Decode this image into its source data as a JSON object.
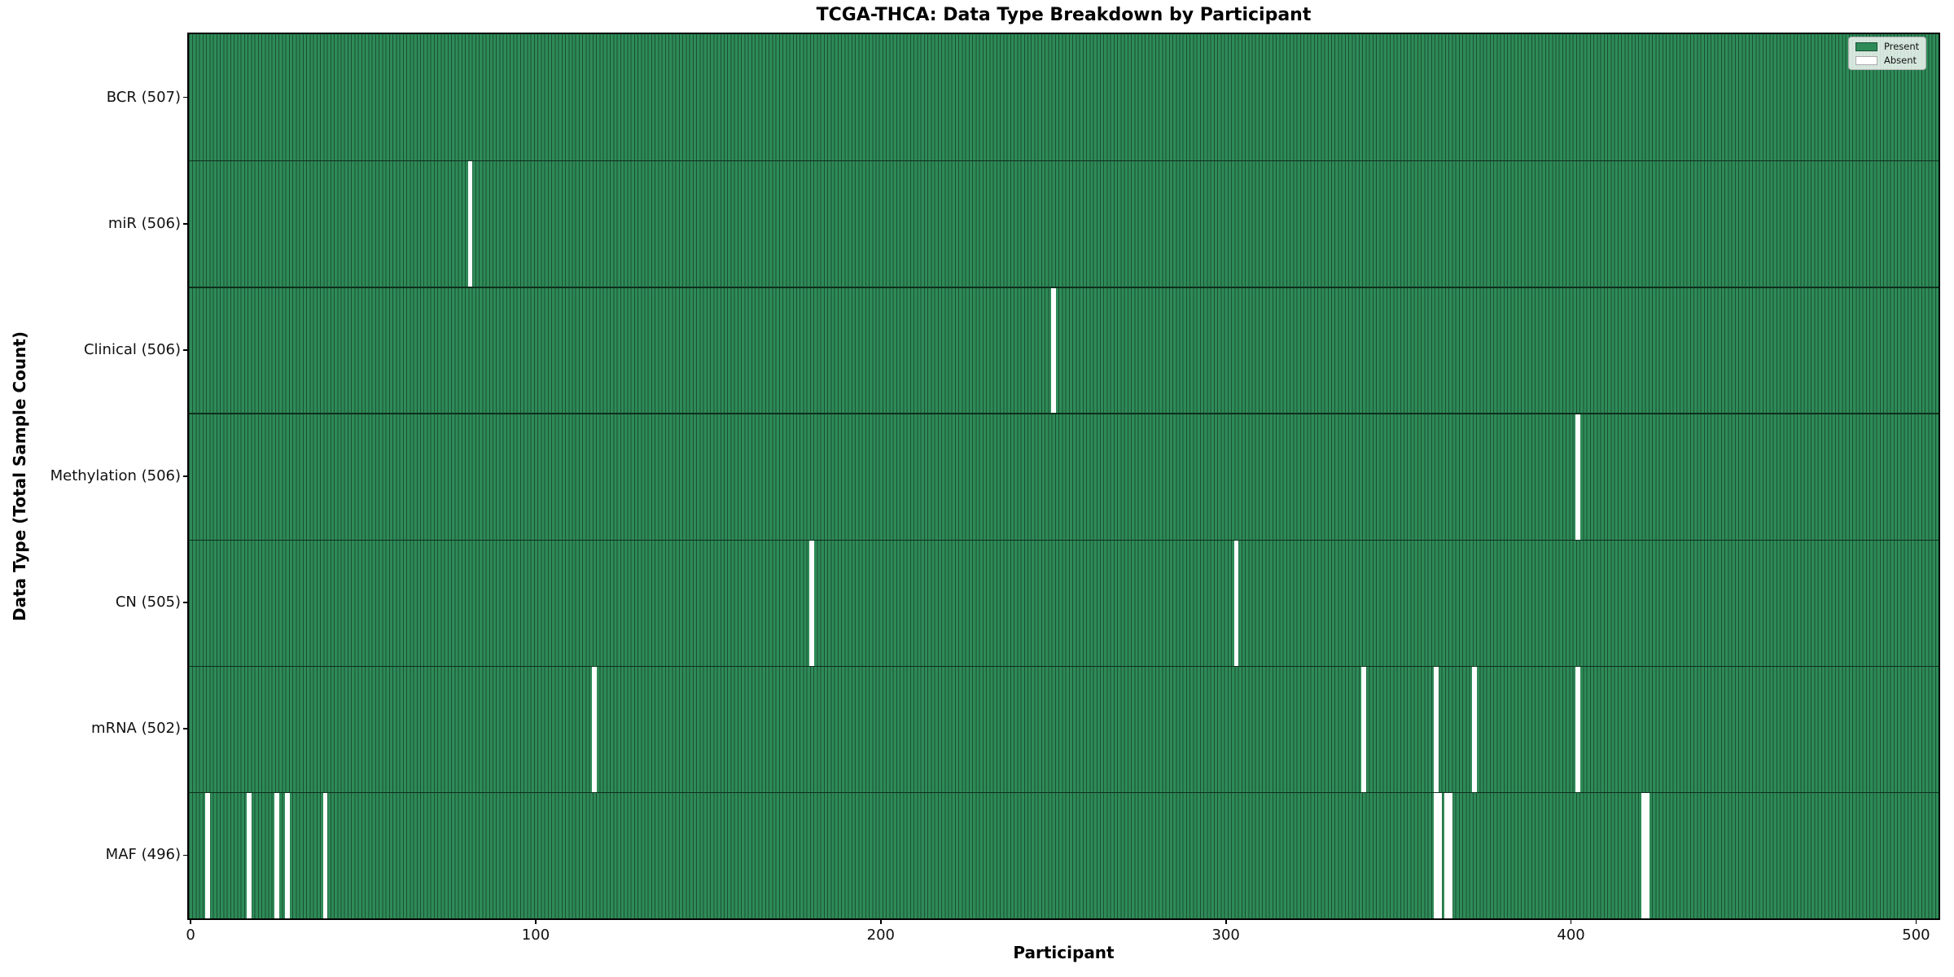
{
  "chart_data": {
    "type": "heatmap",
    "title": "TCGA-THCA: Data Type Breakdown by Participant",
    "xlabel": "Participant",
    "ylabel": "Data Type (Total Sample Count)",
    "n_participants": 507,
    "x_ticks": [
      0,
      100,
      200,
      300,
      400,
      500
    ],
    "grid": false,
    "legend_position": "upper right",
    "legend": [
      {
        "label": "Present",
        "color": "#2e8b57"
      },
      {
        "label": "Absent",
        "color": "#ffffff"
      }
    ],
    "colors": {
      "present_fill": "#2e8b57",
      "bar_edge": "#1b4f35",
      "absent_fill": "#ffffff",
      "row_separator": "#0e2f1d"
    },
    "rows": [
      {
        "label": "BCR (507)",
        "data_type": "BCR",
        "total": 507,
        "absent_participants": []
      },
      {
        "label": "miR (506)",
        "data_type": "miR",
        "total": 506,
        "absent_participants": [
          81
        ]
      },
      {
        "label": "Clinical (506)",
        "data_type": "Clinical",
        "total": 506,
        "absent_participants": [
          250
        ]
      },
      {
        "label": "Methylation (506)",
        "data_type": "Methylation",
        "total": 506,
        "absent_participants": [
          402
        ]
      },
      {
        "label": "CN (505)",
        "data_type": "CN",
        "total": 505,
        "absent_participants": [
          180,
          303
        ]
      },
      {
        "label": "mRNA (502)",
        "data_type": "mRNA",
        "total": 502,
        "absent_participants": [
          117,
          340,
          361,
          372,
          402
        ]
      },
      {
        "label": "MAF (496)",
        "data_type": "MAF",
        "total": 496,
        "absent_participants": [
          5,
          17,
          25,
          28,
          39,
          361,
          362,
          364,
          365,
          421,
          422
        ]
      }
    ]
  }
}
